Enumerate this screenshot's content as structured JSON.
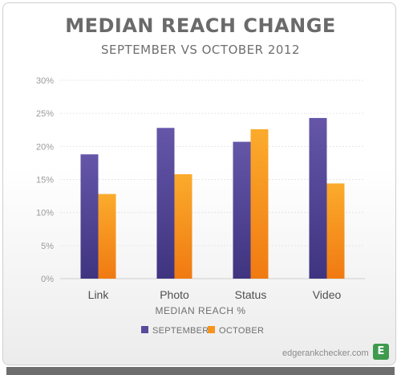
{
  "chart_data": {
    "type": "bar",
    "title": "MEDIAN REACH CHANGE",
    "subtitle": "SEPTEMBER VS OCTOBER 2012",
    "xlabel": "MEDIAN REACH %",
    "categories": [
      "Link",
      "Photo",
      "Status",
      "Video"
    ],
    "yticks": [
      "0%",
      "5%",
      "10%",
      "15%",
      "20%",
      "25%",
      "30%"
    ],
    "ylim": [
      0,
      30
    ],
    "grid": true,
    "legend_position": "bottom-center",
    "series": [
      {
        "name": "SEPTEMBER",
        "color": "#5a4a9c",
        "values": [
          18.8,
          22.8,
          20.7,
          24.3
        ]
      },
      {
        "name": "OCTOBER",
        "color": "#f7941d",
        "values": [
          12.8,
          15.8,
          22.6,
          14.4
        ]
      }
    ]
  },
  "footer": {
    "site": "edgerankchecker.com",
    "logo_letter": "E"
  }
}
